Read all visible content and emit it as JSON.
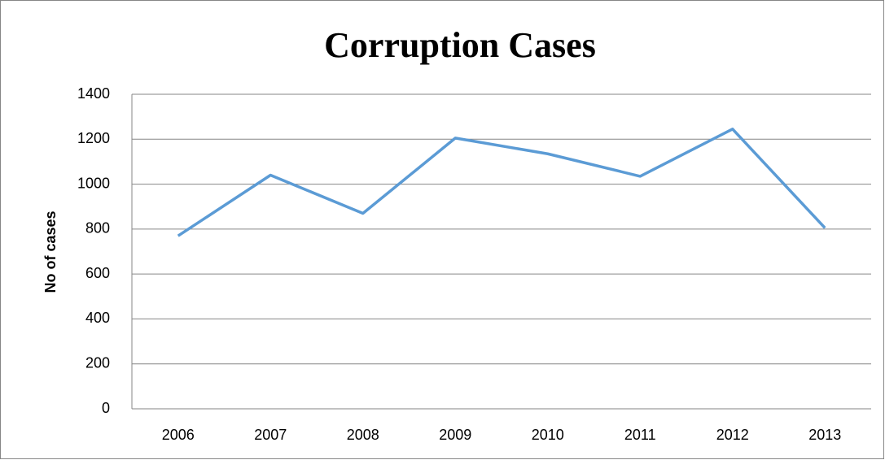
{
  "chart_data": {
    "type": "line",
    "title": "Corruption Cases",
    "y_label": "No of cases",
    "categories": [
      "2006",
      "2007",
      "2008",
      "2009",
      "2010",
      "2011",
      "2012",
      "2013"
    ],
    "values": [
      770,
      1040,
      870,
      1205,
      1135,
      1035,
      1245,
      805
    ],
    "color": "#5b9bd5",
    "ylim": [
      0,
      1400
    ],
    "yticks": [
      0,
      200,
      400,
      600,
      800,
      1000,
      1200,
      1400
    ],
    "grid": true
  }
}
